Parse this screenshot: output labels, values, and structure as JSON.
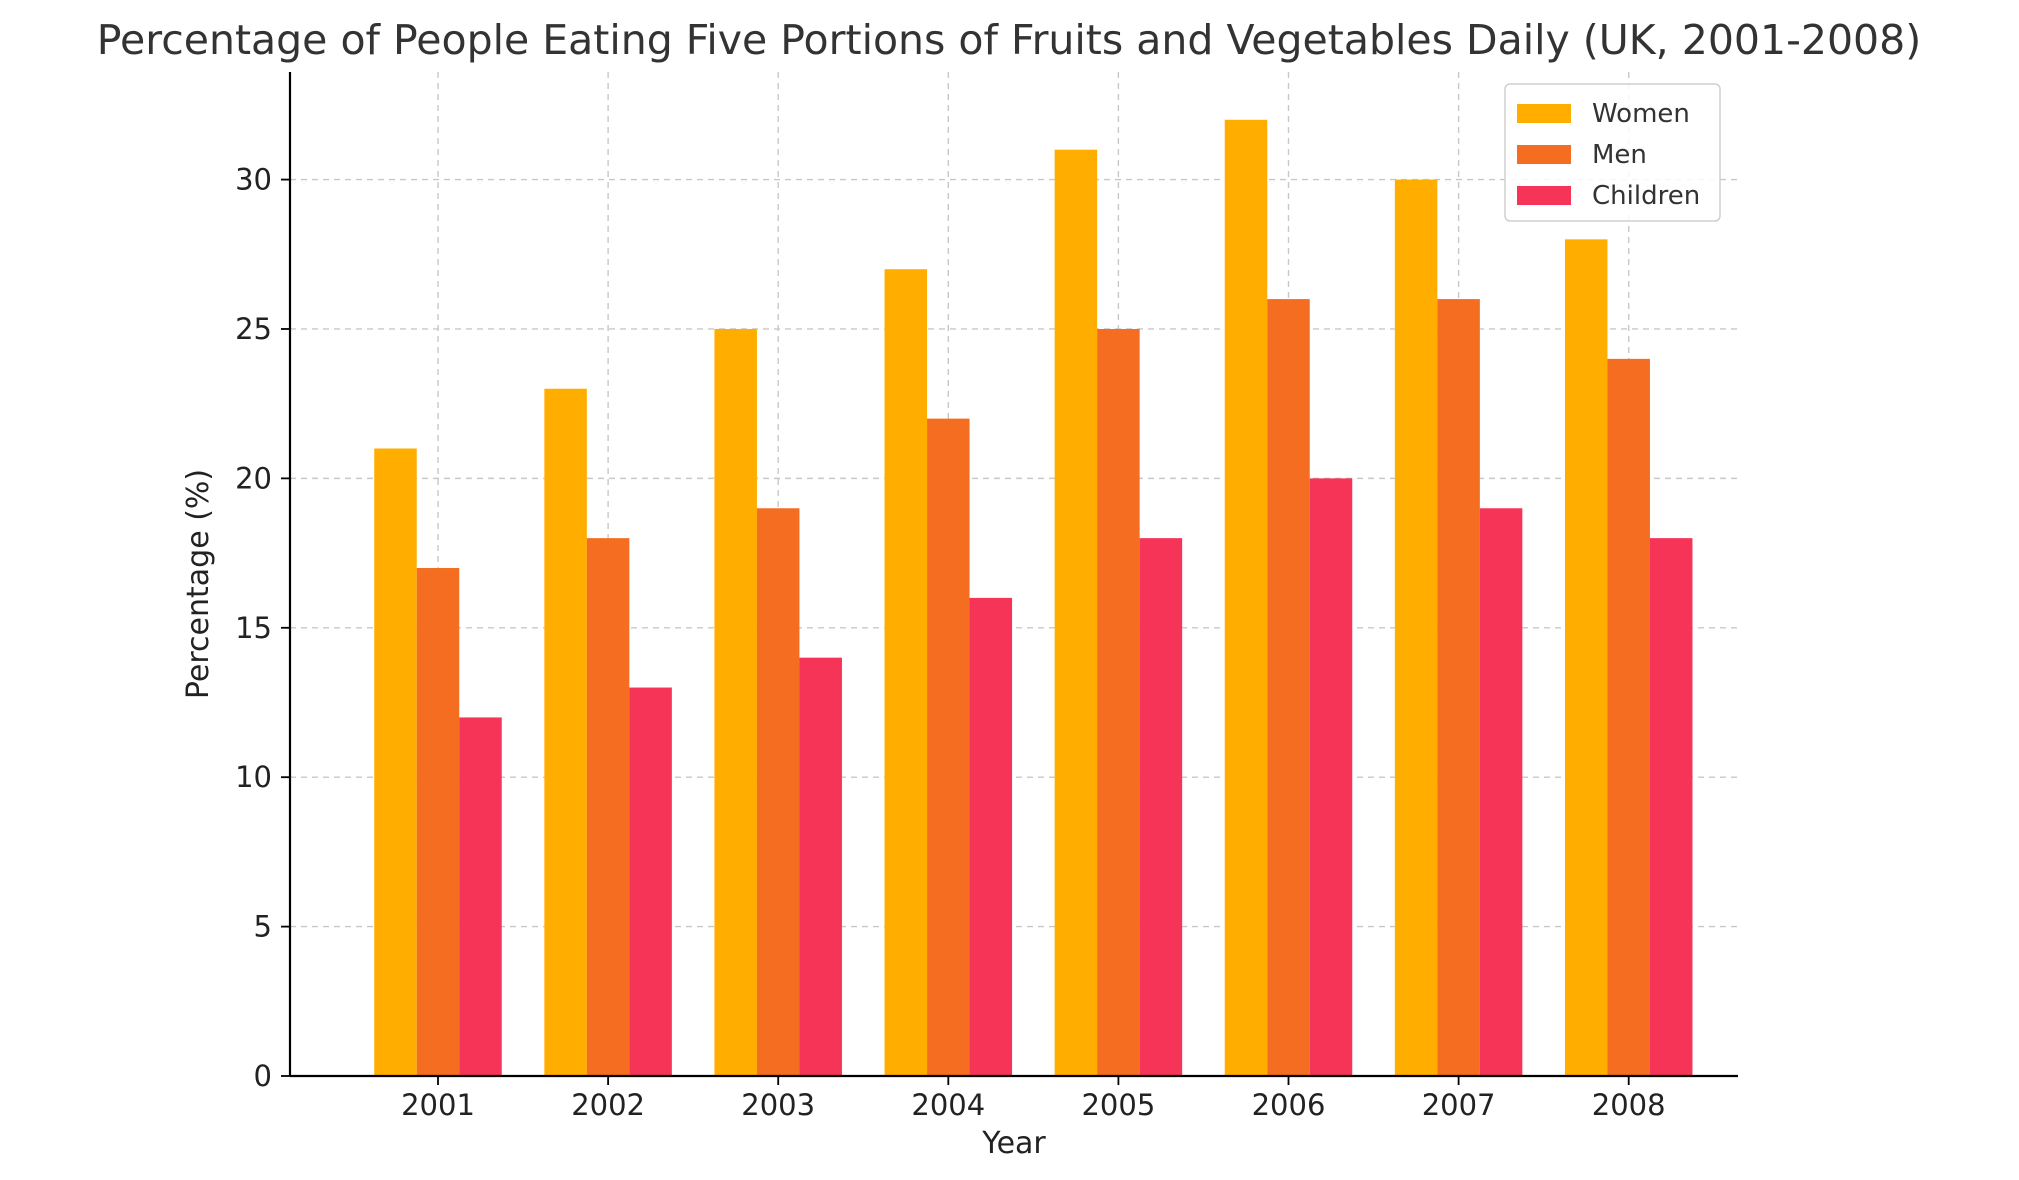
{
  "chart_data": {
    "type": "bar",
    "title": "Percentage of People Eating Five Portions of Fruits and Vegetables Daily (UK, 2001-2008)",
    "xlabel": "Year",
    "ylabel": "Percentage (%)",
    "categories": [
      "2001",
      "2002",
      "2003",
      "2004",
      "2005",
      "2006",
      "2007",
      "2008"
    ],
    "series": [
      {
        "name": "Women",
        "color": "#ffae00",
        "values": [
          21,
          23,
          25,
          27,
          31,
          32,
          30,
          28
        ]
      },
      {
        "name": "Men",
        "color": "#f46d20",
        "values": [
          17,
          18,
          19,
          22,
          25,
          26,
          26,
          24
        ]
      },
      {
        "name": "Children",
        "color": "#f53458",
        "values": [
          12,
          13,
          14,
          16,
          18,
          20,
          19,
          18
        ]
      }
    ],
    "yticks": [
      0,
      5,
      10,
      15,
      20,
      25,
      30
    ],
    "ylim": [
      0,
      33.6
    ],
    "grid": true,
    "legend_position": "top-right"
  }
}
